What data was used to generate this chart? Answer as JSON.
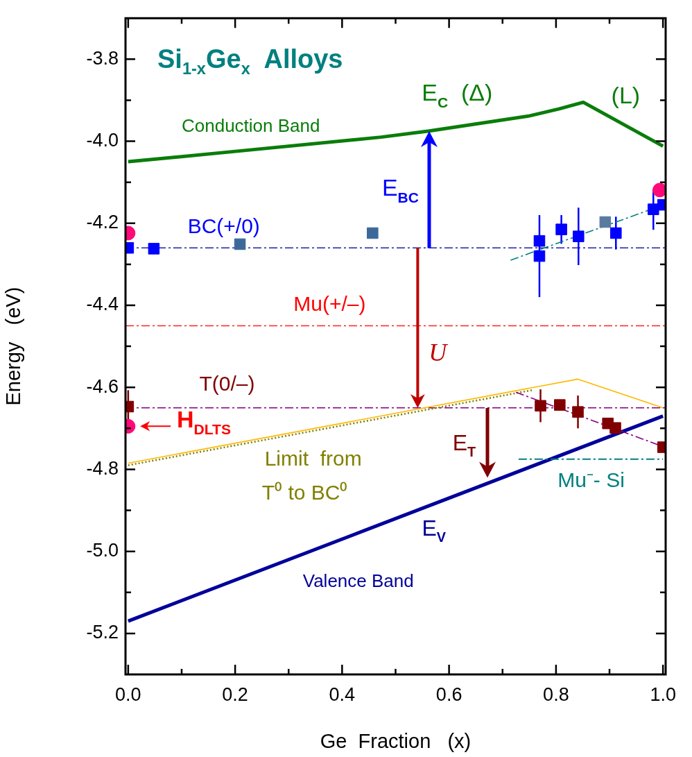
{
  "chart_data": {
    "type": "line",
    "title": "Si$_{1-x}$Ge$_{x}$  Alloys",
    "xlabel": "Ge  Fraction   (x)",
    "ylabel": "Energy   (eV)",
    "xlim": [
      -0.005,
      1.005
    ],
    "ylim": [
      -5.3,
      -3.7
    ],
    "xticks": [
      {
        "value": 0,
        "label": "0.0"
      },
      {
        "value": 0.1,
        "label": null
      },
      {
        "value": 0.2,
        "label": "0.2"
      },
      {
        "value": 0.3,
        "label": null
      },
      {
        "value": 0.4,
        "label": "0.4"
      },
      {
        "value": 0.5,
        "label": null
      },
      {
        "value": 0.6,
        "label": "0.6"
      },
      {
        "value": 0.7,
        "label": null
      },
      {
        "value": 0.8,
        "label": "0.8"
      },
      {
        "value": 0.9,
        "label": null
      },
      {
        "value": 1,
        "label": "1.0"
      }
    ],
    "yticks": [
      -3.8,
      {
        "value": -3.9,
        "label": null
      },
      {
        "value": -4,
        "label": "-4.0"
      },
      {
        "value": -4.1,
        "label": null
      },
      -4.2,
      {
        "value": -4.3,
        "label": null
      },
      -4.4,
      {
        "value": -4.5,
        "label": null
      },
      -4.6,
      {
        "value": -4.7,
        "label": null
      },
      -4.8,
      {
        "value": -4.9,
        "label": null
      },
      {
        "value": -5,
        "label": "-5.0"
      },
      {
        "value": -5.1,
        "label": null
      },
      -5.2
    ],
    "legend": false,
    "ref_lines": [
      {
        "axis": "y",
        "value": -4.26,
        "color": "#2020a0",
        "line_style": "dashed"
      },
      {
        "axis": "y",
        "value": -4.45,
        "color": "#ff2020",
        "line_style": "dashed"
      },
      {
        "axis": "y",
        "value": -4.65,
        "color": "#800080",
        "line_style": "dashed"
      }
    ],
    "series": [
      {
        "type": "line",
        "color": "#0a7d0a",
        "x": [
          0,
          0.214,
          0.473,
          0.563,
          0.751,
          0.806,
          0.851,
          1.0
        ],
        "values": [
          -4.05,
          -4.023,
          -3.99,
          -3.975,
          -3.938,
          -3.921,
          -3.905,
          -4.012
        ],
        "line_style": "solid"
      },
      {
        "type": "line",
        "color": "#00009a",
        "x": [
          0,
          1.0
        ],
        "values": [
          -5.17,
          -4.67
        ],
        "line_style": "solid"
      },
      {
        "type": "line",
        "color": "#ffb800",
        "x": [
          0,
          0.841,
          1.0
        ],
        "values": [
          -4.785,
          -4.58,
          -4.65
        ],
        "line_style": "solid"
      },
      {
        "type": "line",
        "color": "#808000",
        "x": [
          0,
          0.755
        ],
        "values": [
          -4.79,
          -4.607
        ],
        "line_style": "dotted"
      },
      {
        "type": "line",
        "color": "#008080",
        "x": [
          0.73,
          1.0
        ],
        "values": [
          -4.775,
          -4.775
        ],
        "line_style": "dashed"
      },
      {
        "type": "line",
        "color": "#008080",
        "x": [
          0.715,
          0.997
        ],
        "values": [
          -4.29,
          -4.157
        ],
        "line_style": "dashed"
      },
      {
        "type": "line",
        "color": "#800080",
        "x": [
          0.725,
          0.997
        ],
        "values": [
          -4.612,
          -4.743
        ],
        "line_style": "dashed"
      },
      {
        "type": "scatter",
        "color": "#0000ff",
        "marker": "square",
        "x": [
          0,
          0.048,
          0.769,
          0.769,
          0.81,
          0.842,
          0.912,
          0.982,
          1.0
        ],
        "values": [
          -4.26,
          -4.262,
          -4.243,
          -4.28,
          -4.215,
          -4.232,
          -4.224,
          -4.166,
          -4.155
        ],
        "errors": [
          null,
          null,
          null,
          0.1,
          0.035,
          0.07,
          0.04,
          0.05,
          null
        ]
      },
      {
        "type": "scatter",
        "color": "#3b6a9a",
        "marker": "square",
        "x": [
          0.209,
          0.457
        ],
        "values": [
          -4.251,
          -4.224
        ]
      },
      {
        "type": "scatter",
        "color": "#5a7aa0",
        "marker": "square",
        "x": [
          0.892
        ],
        "values": [
          -4.197
        ]
      },
      {
        "type": "scatter",
        "color": "#ff0a78",
        "marker": "circle",
        "x": [
          0,
          0.994,
          0
        ],
        "values": [
          -4.224,
          -4.119,
          -4.695
        ]
      },
      {
        "type": "scatter",
        "color": "#800000",
        "marker": "square",
        "x": [
          0,
          0.771,
          0.807,
          0.841,
          0.897,
          0.911,
          1.0
        ],
        "values": [
          -4.647,
          -4.645,
          -4.643,
          -4.66,
          -4.688,
          -4.699,
          -4.746
        ],
        "errors": [
          0.04,
          0.04,
          null,
          0.04,
          null,
          null,
          null
        ]
      }
    ],
    "annotations": [
      "Conduction Band",
      "E$_{C}$  (Δ)",
      "(L)",
      "E$_{BC}$",
      "BC(+/0)",
      "Mu(+/–)",
      "U",
      "T(0/–)",
      "H$_{DLTS}$",
      "Limit  from",
      "T⁰ to BC⁰",
      "E$_{T}$",
      "Mu⁻- Si",
      "E$_{V}$",
      "Valence Band"
    ]
  }
}
